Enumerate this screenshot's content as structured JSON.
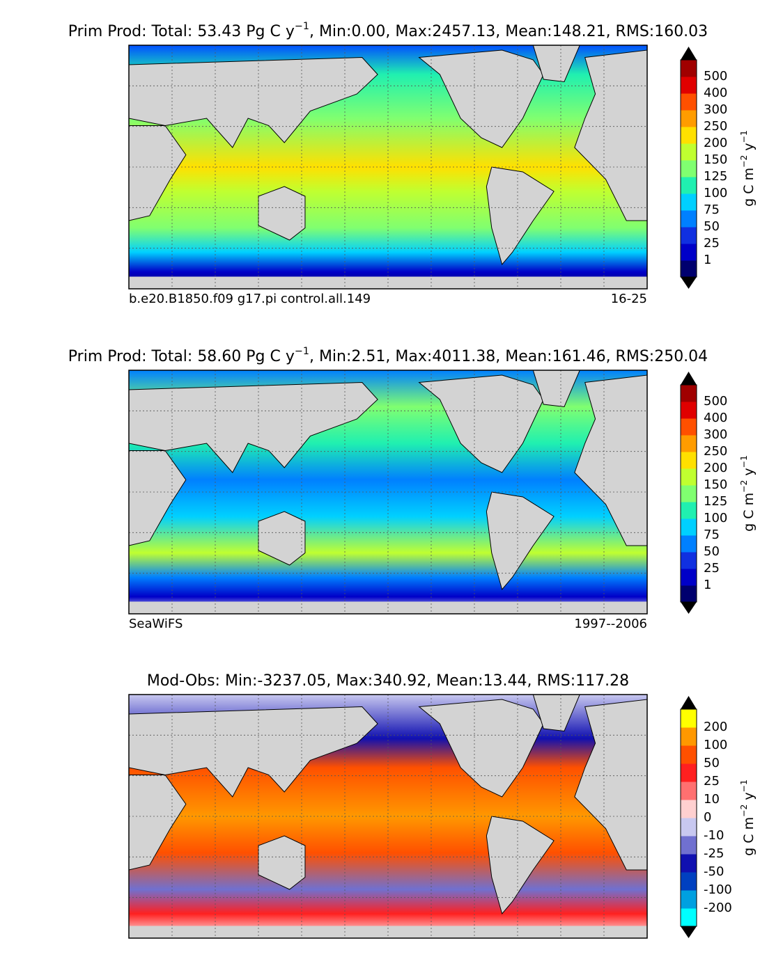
{
  "panels": [
    {
      "title": [
        {
          "text": "Prim Prod: Total: 53.43 Pg C y"
        },
        {
          "text": "−1",
          "sup": true
        },
        {
          "text": ", Min:0.00, Max:2457.13, Mean:148.21, RMS:160.03"
        }
      ],
      "left_label": "b.e20.B1850.f09 g17.pi control.all.149",
      "right_label": "16-25",
      "colorbar": {
        "ticks": [
          1,
          25,
          50,
          75,
          100,
          125,
          150,
          200,
          250,
          300,
          400,
          500
        ],
        "colors": [
          "#00006e",
          "#0000c8",
          "#1030e0",
          "#0080ff",
          "#00d0ff",
          "#20f0b0",
          "#80ff70",
          "#c0ff30",
          "#ffe000",
          "#ff9c00",
          "#ff5000",
          "#e00000",
          "#a00000"
        ],
        "label": [
          {
            "text": "g C m"
          },
          {
            "text": "−2",
            "sup": true
          },
          {
            "text": " y"
          },
          {
            "text": "−1",
            "sup": true
          }
        ]
      }
    },
    {
      "title": [
        {
          "text": "Prim Prod: Total: 58.60 Pg C y"
        },
        {
          "text": "−1",
          "sup": true
        },
        {
          "text": ", Min:2.51, Max:4011.38, Mean:161.46, RMS:250.04"
        }
      ],
      "left_label": "SeaWiFS",
      "right_label": "1997--2006",
      "colorbar": {
        "ticks": [
          1,
          25,
          50,
          75,
          100,
          125,
          150,
          200,
          250,
          300,
          400,
          500
        ],
        "colors": [
          "#00006e",
          "#0000c8",
          "#1030e0",
          "#0080ff",
          "#00d0ff",
          "#20f0b0",
          "#80ff70",
          "#c0ff30",
          "#ffe000",
          "#ff9c00",
          "#ff5000",
          "#e00000",
          "#a00000"
        ],
        "label": [
          {
            "text": "g C m"
          },
          {
            "text": "−2",
            "sup": true
          },
          {
            "text": " y"
          },
          {
            "text": "−1",
            "sup": true
          }
        ]
      }
    },
    {
      "title": [
        {
          "text": "Mod-Obs: Min:-3237.05, Max:340.92, Mean:13.44, RMS:117.28"
        }
      ],
      "colorbar": {
        "ticks": [
          -200,
          -100,
          -50,
          -25,
          -10,
          0,
          10,
          25,
          50,
          100,
          200
        ],
        "colors": [
          "#00ffff",
          "#00a0e0",
          "#0040c0",
          "#1010b0",
          "#7070d0",
          "#c8c8f0",
          "#ffd0d0",
          "#ff7070",
          "#ff2020",
          "#ff5000",
          "#ff9800",
          "#ffff00"
        ],
        "label": [
          {
            "text": "g C m"
          },
          {
            "text": "−2",
            "sup": true
          },
          {
            "text": " y"
          },
          {
            "text": "−1",
            "sup": true
          }
        ]
      }
    }
  ]
}
